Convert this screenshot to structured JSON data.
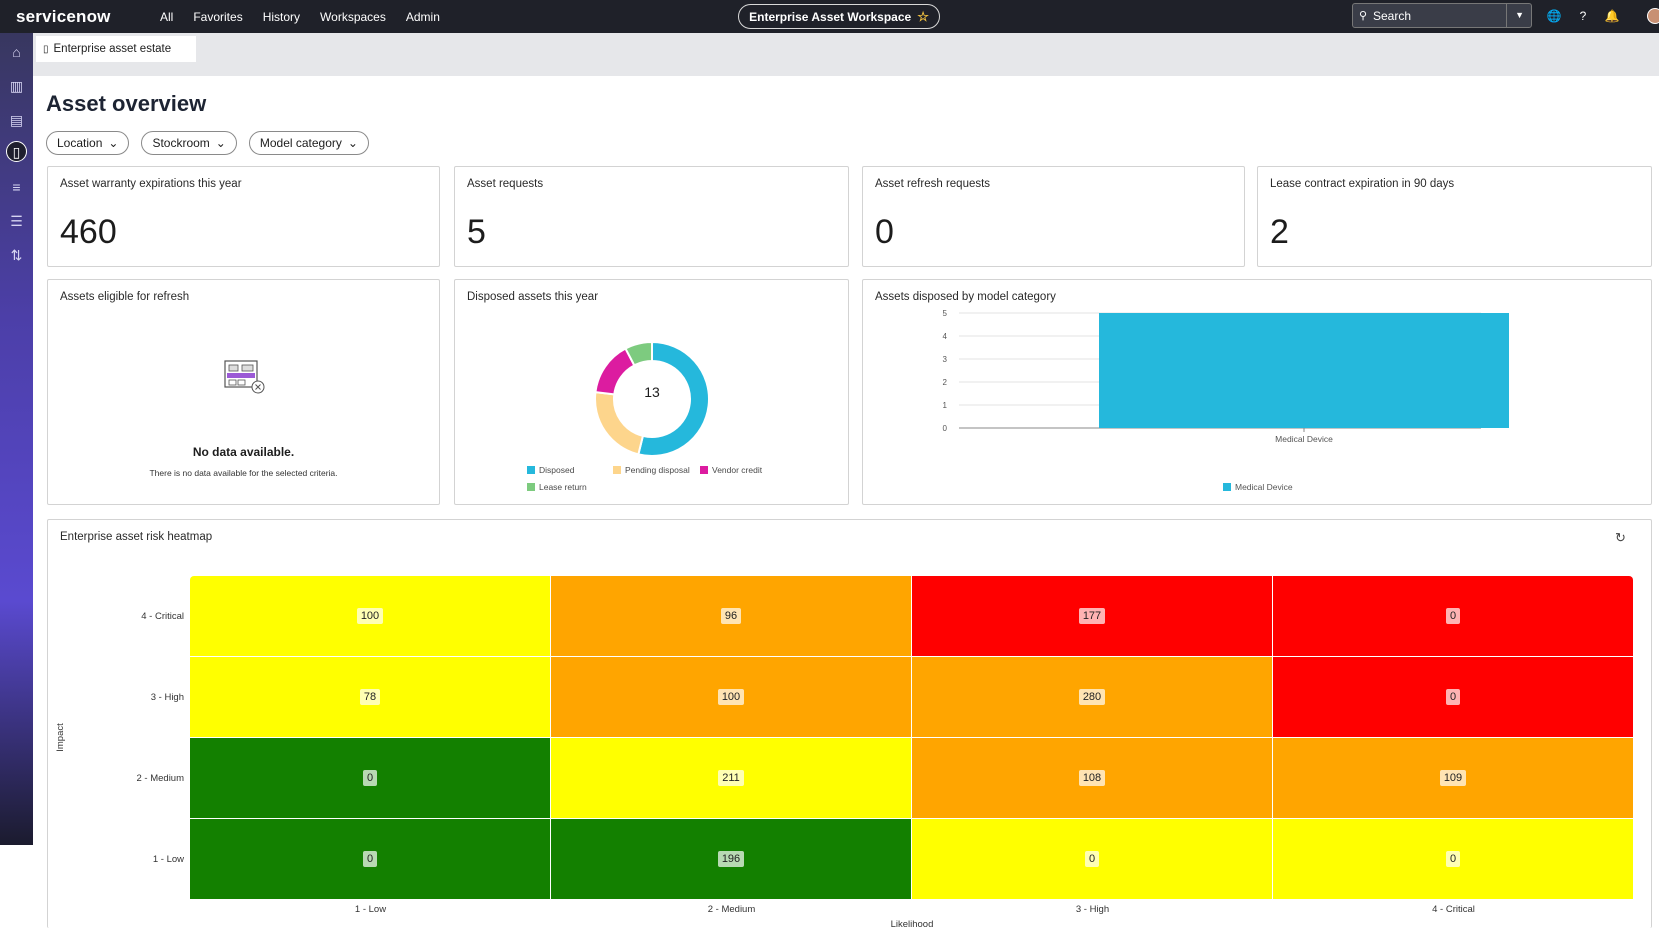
{
  "nav": {
    "logo_text": "servicenow",
    "menu": [
      "All",
      "Favorites",
      "History",
      "Workspaces",
      "Admin"
    ],
    "workspace_title": "Enterprise Asset Workspace",
    "search_label": "Search",
    "icons": [
      "globe-icon",
      "help-icon",
      "bell-icon",
      "avatar"
    ]
  },
  "rail": {
    "icons": [
      "home-icon",
      "bar-chart-icon",
      "building-icon",
      "clipboard-icon",
      "sliders-icon",
      "list-icon",
      "transfer-icon"
    ],
    "active": "clipboard-icon"
  },
  "tab": {
    "label": "Enterprise asset estate"
  },
  "page": {
    "title": "Asset overview",
    "filters": [
      "Location",
      "Stockroom",
      "Model category"
    ]
  },
  "kpis": [
    {
      "title": "Asset warranty expirations this year",
      "value": "460"
    },
    {
      "title": "Asset requests",
      "value": "5"
    },
    {
      "title": "Asset refresh requests",
      "value": "0"
    },
    {
      "title": "Lease contract expiration in 90 days",
      "value": "2"
    }
  ],
  "refresh_card": {
    "title": "Assets eligible for refresh",
    "empty_title": "No data available.",
    "empty_text": "There is no data available for the selected criteria."
  },
  "donut_card": {
    "title": "Disposed assets this year",
    "center_value": "13",
    "legend": [
      "Disposed",
      "Pending disposal",
      "Vendor credit",
      "Lease return"
    ]
  },
  "bar_card": {
    "title": "Assets disposed by model category"
  },
  "heatmap_card": {
    "title": "Enterprise asset risk heatmap"
  },
  "colors": {
    "accent_cyan": "#25b8dc",
    "pending": "#fdd58c",
    "vendor": "#dc1ca0",
    "lease": "#7dcb7f",
    "heat_yellow": "#ffff00",
    "heat_orange": "#ffa500",
    "heat_red": "#ff0000",
    "heat_green": "#138000"
  },
  "chart_data": [
    {
      "type": "pie",
      "title": "Disposed assets this year",
      "total": 13,
      "categories": [
        "Disposed",
        "Pending disposal",
        "Vendor credit",
        "Lease return"
      ],
      "values": [
        7,
        3,
        2,
        1
      ],
      "colors": [
        "#25b8dc",
        "#fdd58c",
        "#dc1ca0",
        "#7dcb7f"
      ]
    },
    {
      "type": "bar",
      "title": "Assets disposed by model category",
      "categories": [
        "Medical Device"
      ],
      "series": [
        {
          "name": "Medical Device",
          "values": [
            5
          ]
        }
      ],
      "ylim": [
        0,
        5
      ],
      "yticks": [
        0,
        1,
        2,
        3,
        4,
        5
      ],
      "grid": true,
      "legend": "bottom"
    },
    {
      "type": "heatmap",
      "title": "Enterprise asset risk heatmap",
      "xlabel": "Likelihood",
      "ylabel": "Impact",
      "x": [
        "1 - Low",
        "2 - Medium",
        "3 - High",
        "4 - Critical"
      ],
      "y": [
        "4 - Critical",
        "3 - High",
        "2 - Medium",
        "1 - Low"
      ],
      "values": [
        [
          100,
          96,
          177,
          0
        ],
        [
          78,
          100,
          280,
          0
        ],
        [
          0,
          211,
          108,
          109
        ],
        [
          0,
          196,
          0,
          0
        ]
      ],
      "colors": [
        [
          "#ffff00",
          "#ffa500",
          "#ff0000",
          "#ff0000"
        ],
        [
          "#ffff00",
          "#ffa500",
          "#ffa500",
          "#ff0000"
        ],
        [
          "#138000",
          "#ffff00",
          "#ffa500",
          "#ffa500"
        ],
        [
          "#138000",
          "#138000",
          "#ffff00",
          "#ffff00"
        ]
      ]
    }
  ]
}
